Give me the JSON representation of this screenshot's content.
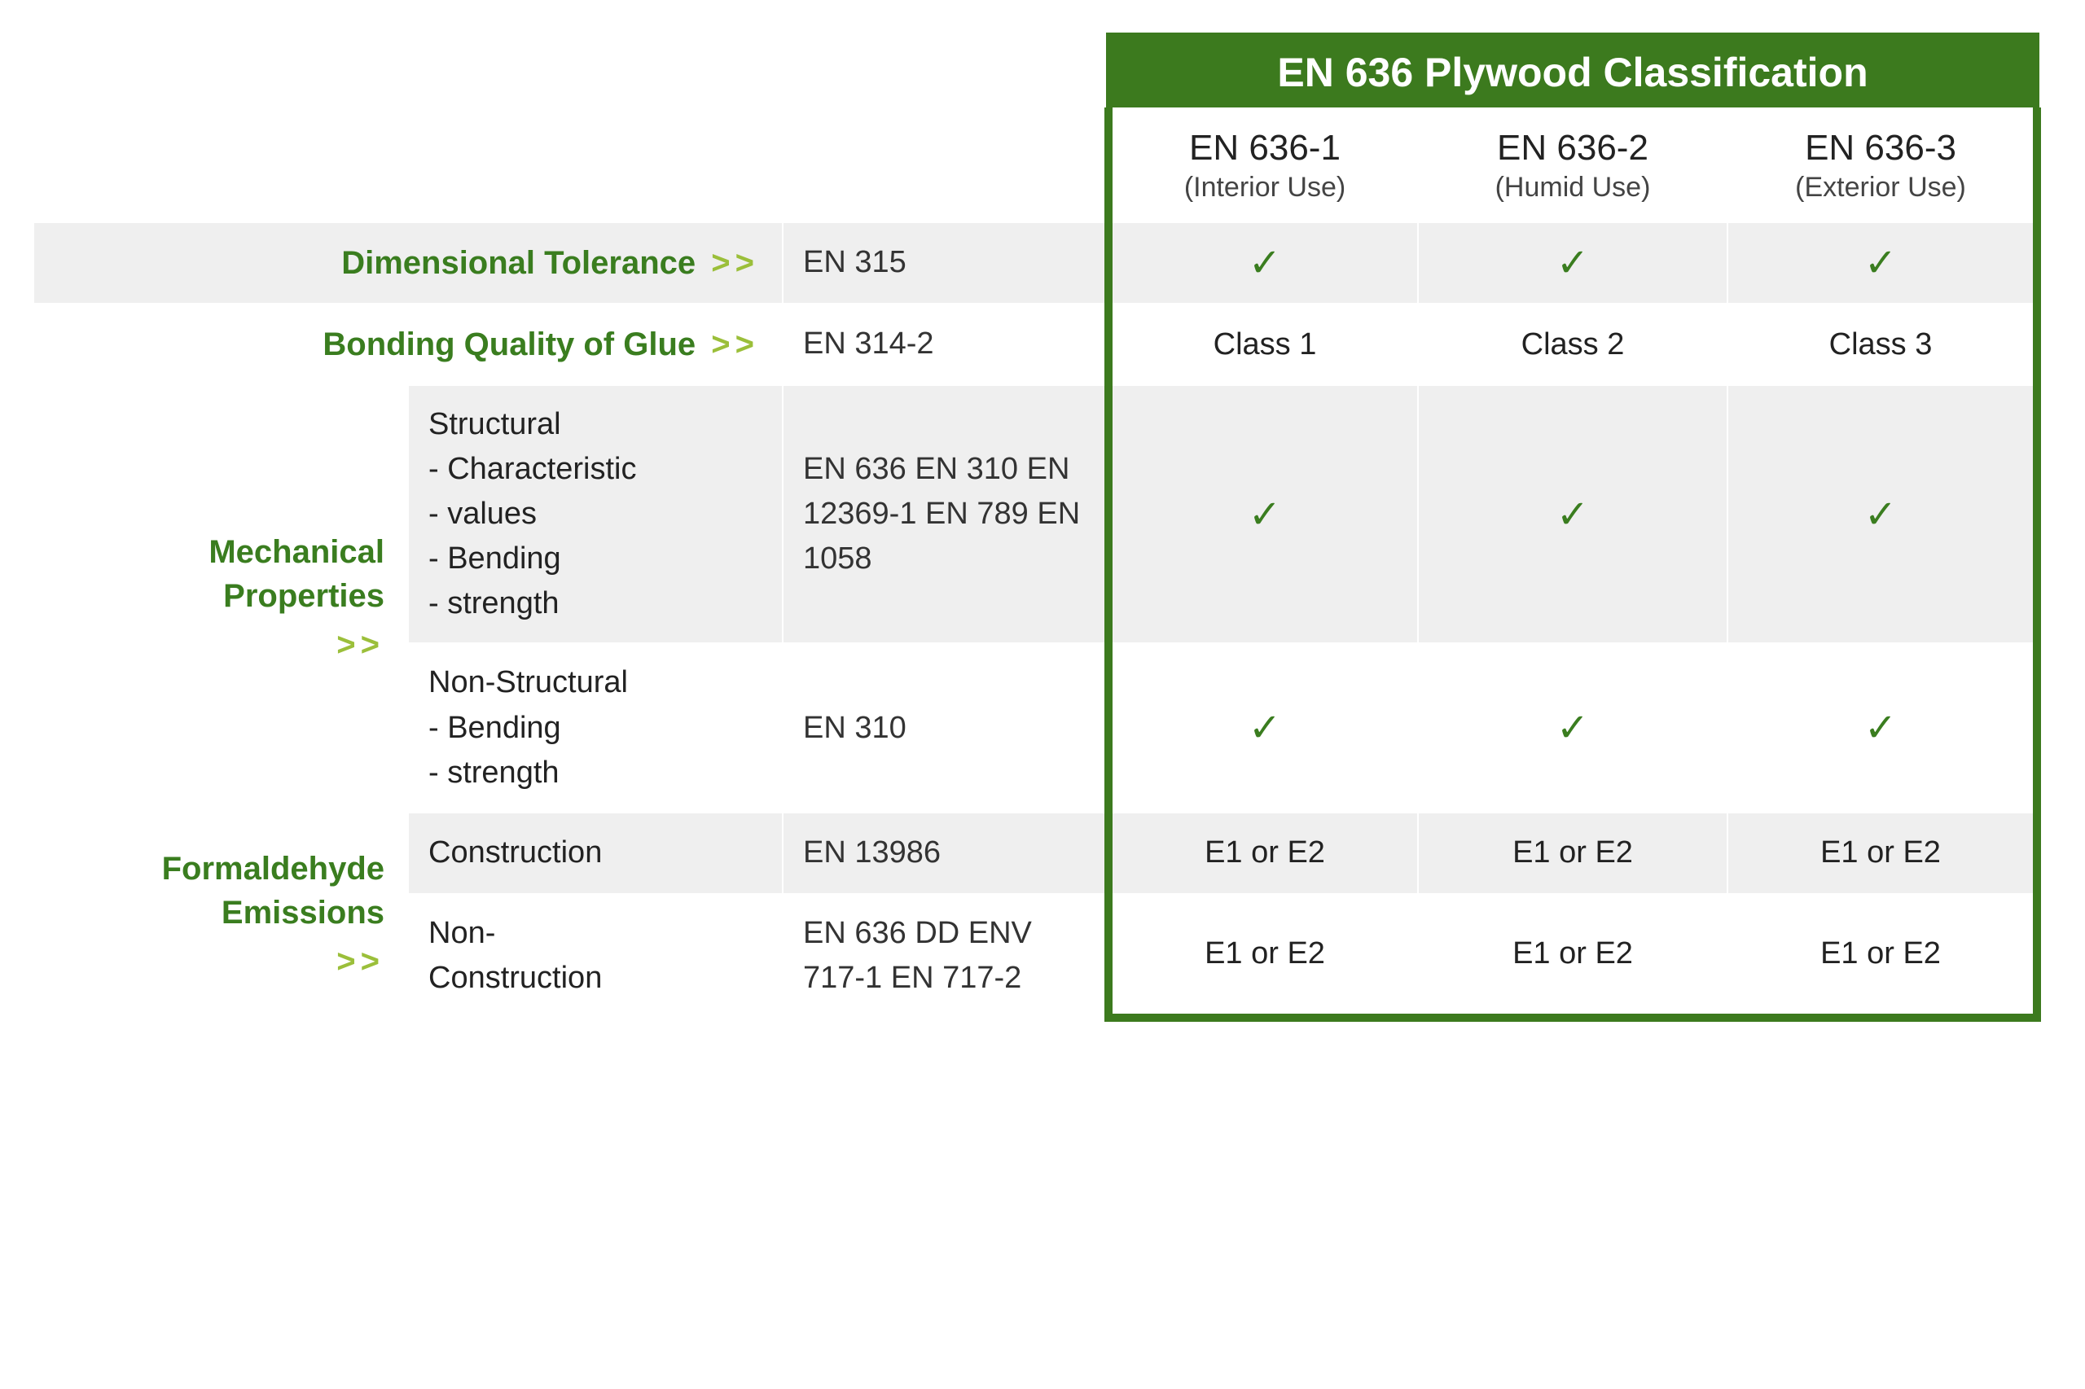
{
  "type": "table",
  "colors": {
    "header_bg": "#3c7a1e",
    "header_text": "#ffffff",
    "category_text": "#3a7d1f",
    "arrow_text": "#9bbf3a",
    "grey_row": "#efefef",
    "white_row": "#ffffff",
    "check_color": "#3a7d1f",
    "body_text": "#222222",
    "border": "#ffffff",
    "green_border": "#3c7a1e"
  },
  "fontsizes": {
    "header": 50,
    "subhead_code": 44,
    "subhead_use": 34,
    "category": 40,
    "body": 38,
    "check": 48
  },
  "header_title": "EN 636 Plywood Classification",
  "classes": [
    {
      "code": "EN 636-1",
      "use": "(Interior Use)"
    },
    {
      "code": "EN 636-2",
      "use": "(Humid Use)"
    },
    {
      "code": "EN 636-3",
      "use": "(Exterior Use)"
    }
  ],
  "arrows": ">>",
  "rows": {
    "dim_tol": {
      "label": "Dimensional Tolerance",
      "std": "EN 315",
      "vals": [
        "✓",
        "✓",
        "✓"
      ]
    },
    "bonding": {
      "label": "Bonding Quality of Glue",
      "std": "EN 314-2",
      "vals": [
        "Class 1",
        "Class 2",
        "Class 3"
      ]
    },
    "mech": {
      "label": "Mechanical\nProperties",
      "structural": {
        "title": "Structural",
        "bullets": [
          "- Characteristic",
          "- values",
          "- Bending",
          "- strength"
        ],
        "stds": [
          "EN 636",
          "EN 310",
          "EN 12369-1",
          "EN 789",
          "EN 1058"
        ],
        "vals": [
          "✓",
          "✓",
          "✓"
        ]
      },
      "nonstructural": {
        "title": "Non-Structural",
        "bullets": [
          "- Bending",
          "- strength"
        ],
        "stds": [
          "EN 310"
        ],
        "vals": [
          "✓",
          "✓",
          "✓"
        ]
      }
    },
    "formaldehyde": {
      "label": "Formaldehyde\nEmissions",
      "construction": {
        "title": "Construction",
        "stds": [
          "EN 13986"
        ],
        "vals": [
          "E1 or E2",
          "E1 or E2",
          "E1 or E2"
        ]
      },
      "nonconstruction": {
        "title": "Non-\nConstruction",
        "stds": [
          "EN 636",
          "DD ENV 717-1",
          "EN 717-2"
        ],
        "vals": [
          "E1 or E2",
          "E1 or E2",
          "E1 or E2"
        ]
      }
    }
  }
}
